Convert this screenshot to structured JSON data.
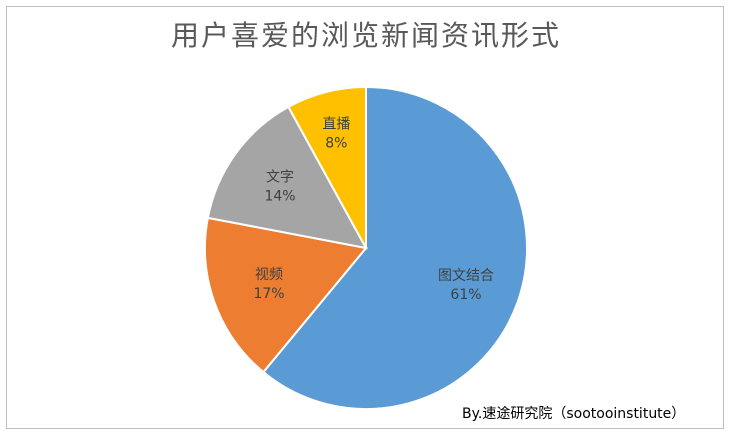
{
  "chart_data": {
    "type": "pie",
    "title": "用户喜爱的浏览新闻资讯形式",
    "slices": [
      {
        "label": "图文结合",
        "value": 61,
        "value_label": "61%",
        "color": "#5B9BD5",
        "text_color": "#404040"
      },
      {
        "label": "视频",
        "value": 17,
        "value_label": "17%",
        "color": "#ED7D31",
        "text_color": "#404040"
      },
      {
        "label": "文字",
        "value": 14,
        "value_label": "14%",
        "color": "#A5A5A5",
        "text_color": "#404040"
      },
      {
        "label": "直播",
        "value": 8,
        "value_label": "8%",
        "color": "#FFC000",
        "text_color": "#404040"
      }
    ],
    "legend": "none",
    "grid": false
  },
  "credit": "By.速途研究院（sootooinstitute）"
}
